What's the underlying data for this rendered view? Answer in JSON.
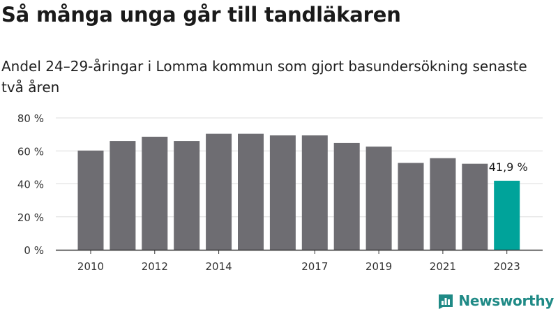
{
  "header": {
    "title": "Så många unga går till tandläkaren",
    "subtitle": "Andel 24–29-åringar i Lomma kommun som gjort basundersökning senaste två åren"
  },
  "brand": {
    "name": "Newsworthy",
    "icon": "newsworthy-logo-icon",
    "color": "#1f8a86"
  },
  "chart_data": {
    "type": "bar",
    "x": [
      2010,
      2011,
      2012,
      2013,
      2014,
      2015,
      2016,
      2017,
      2018,
      2019,
      2020,
      2021,
      2022,
      2023
    ],
    "values": [
      60.2,
      66.0,
      68.6,
      66.0,
      70.4,
      70.4,
      69.4,
      69.4,
      64.8,
      62.6,
      52.7,
      55.6,
      52.2,
      41.9
    ],
    "x_tick_labels": [
      {
        "x": 2010,
        "label": "2010"
      },
      {
        "x": 2012,
        "label": "2012"
      },
      {
        "x": 2014,
        "label": "2014"
      },
      {
        "x": 2017,
        "label": "2017"
      },
      {
        "x": 2019,
        "label": "2019"
      },
      {
        "x": 2021,
        "label": "2021"
      },
      {
        "x": 2023,
        "label": "2023"
      }
    ],
    "y_ticks": [
      0,
      20,
      40,
      60,
      80
    ],
    "y_tick_labels": [
      "0 %",
      "20 %",
      "40 %",
      "60 %",
      "80 %"
    ],
    "ylim": [
      0,
      80
    ],
    "grid": true,
    "legend": "none",
    "bar_color": "#6e6d72",
    "highlight_color": "#00a39a",
    "highlight_x": 2023,
    "data_label": {
      "x": 2023,
      "text": "41,9 %"
    }
  }
}
